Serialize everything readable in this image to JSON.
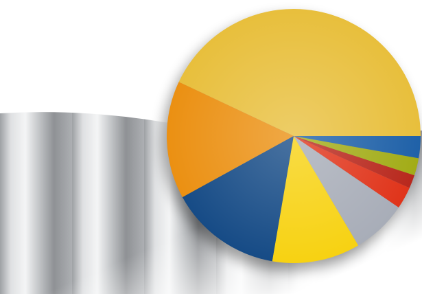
{
  "chart_data": {
    "type": "pie",
    "values": [
      43,
      15,
      14.3,
      11.2,
      7,
      2.8,
      1.7,
      2.2,
      2.8
    ],
    "colors": [
      "#e8bf3c",
      "#eb9012",
      "#164b86",
      "#f7d212",
      "#a8adb8",
      "#e0341a",
      "#b8281d",
      "#a2ac17",
      "#1f61a8"
    ],
    "start_angle": 0,
    "direction": "counterclockwise"
  }
}
